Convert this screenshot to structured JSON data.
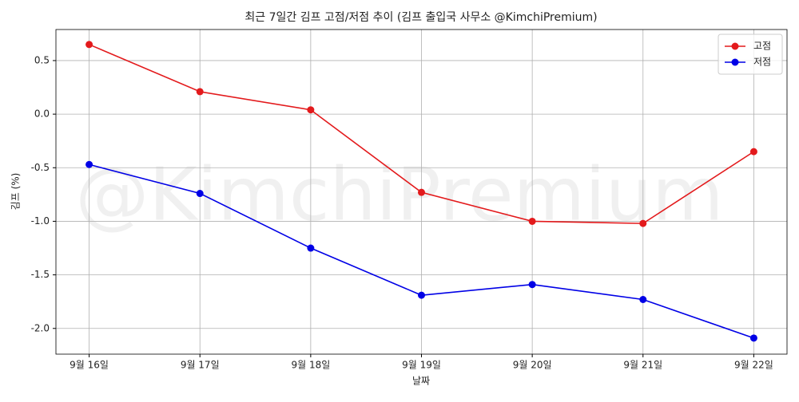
{
  "chart_data": {
    "type": "line",
    "title": "최근 7일간 김프 고점/저점 추이 (김프 출입국 사무소 @KimchiPremium)",
    "watermark": "@KimchiPremium",
    "x_label": "날짜",
    "y_label": "김프 (%)",
    "categories": [
      "9월 16일",
      "9월 17일",
      "9월 18일",
      "9월 19일",
      "9월 20일",
      "9월 21일",
      "9월 22일"
    ],
    "series": [
      {
        "name": "고점",
        "color": "#e31a1c",
        "values": [
          0.65,
          0.21,
          0.04,
          -0.73,
          -1.0,
          -1.02,
          -0.35
        ]
      },
      {
        "name": "저점",
        "color": "#0000e6",
        "values": [
          -0.47,
          -0.74,
          -1.25,
          -1.69,
          -1.59,
          -1.73,
          -2.09
        ]
      }
    ],
    "ylim": [
      -2.24,
      0.79
    ],
    "yticks": [
      {
        "value": -2.0,
        "label": "-2.0"
      },
      {
        "value": -1.5,
        "label": "-1.5"
      },
      {
        "value": -1.0,
        "label": "-1.0"
      },
      {
        "value": -0.5,
        "label": "-0.5"
      },
      {
        "value": 0.0,
        "label": "0.0"
      },
      0.5
    ],
    "grid": true,
    "legend": "upper right"
  }
}
